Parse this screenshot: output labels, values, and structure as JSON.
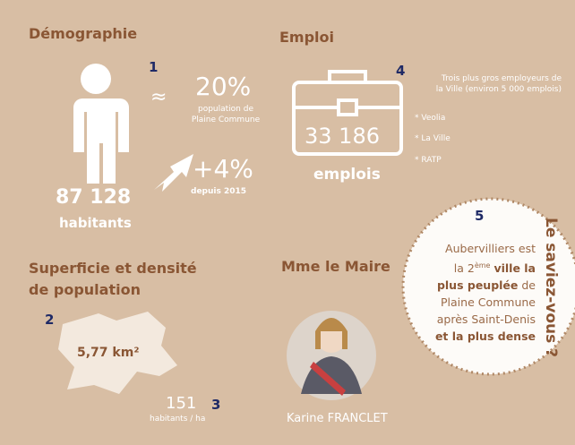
{
  "demographie": {
    "title": "Démographie",
    "marker": "1",
    "approx": "≈",
    "share": "20%",
    "share_caption": [
      "population de",
      "Plaine Commune"
    ],
    "growth": "+4%",
    "growth_caption": "depuis 2015",
    "population": "87 128",
    "population_unit": "habitants"
  },
  "emploi": {
    "title": "Emploi",
    "marker": "4",
    "intro": [
      "Trois plus gros employeurs de",
      "la Ville (environ 5 000 emplois)"
    ],
    "employers": [
      "* Veolia",
      "* La Ville",
      "* RATP"
    ],
    "jobs": "33 186",
    "jobs_unit": "emplois"
  },
  "superficie": {
    "title": [
      "Superficie et densité",
      "de population"
    ],
    "marker_area": "2",
    "area": "5,77 km²",
    "density": "151",
    "marker_density": "3",
    "density_unit": "habitants / ha"
  },
  "maire": {
    "title": "Mme le Maire",
    "name": "Karine FRANCLET"
  },
  "fact": {
    "marker": "5",
    "heading": "Le saviez-vous ?",
    "parts": [
      "Aubervilliers est",
      "la 2",
      "ème",
      "ville la",
      "plus peuplée",
      "de",
      "Plaine Commune",
      "après Saint-Denis",
      "et la plus dense"
    ]
  }
}
